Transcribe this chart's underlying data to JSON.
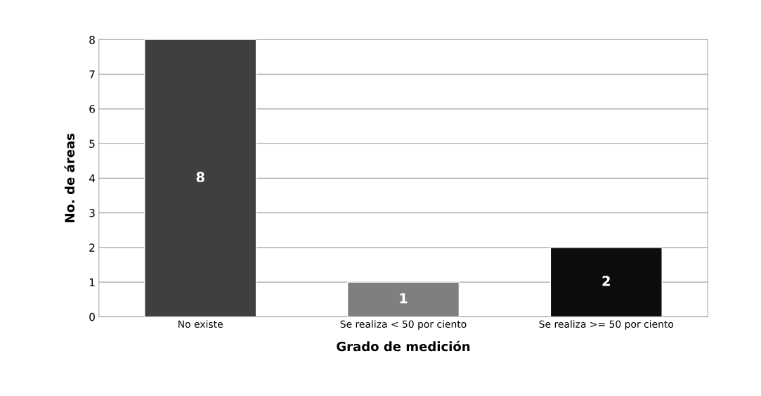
{
  "chart_data": {
    "type": "bar",
    "xlabel": "Grado de medición",
    "ylabel": "No. de áreas",
    "categories": [
      "No existe",
      "Se realiza < 50 por ciento",
      "Se realiza >= 50 por ciento"
    ],
    "values": [
      8,
      1,
      2
    ],
    "colors": [
      "#3f3f3f",
      "#7f7f7f",
      "#0d0d0d"
    ],
    "ylim": [
      0,
      8
    ],
    "yticks": [
      0,
      1,
      2,
      3,
      4,
      5,
      6,
      7,
      8
    ],
    "grid": "y",
    "data_labels": true
  }
}
